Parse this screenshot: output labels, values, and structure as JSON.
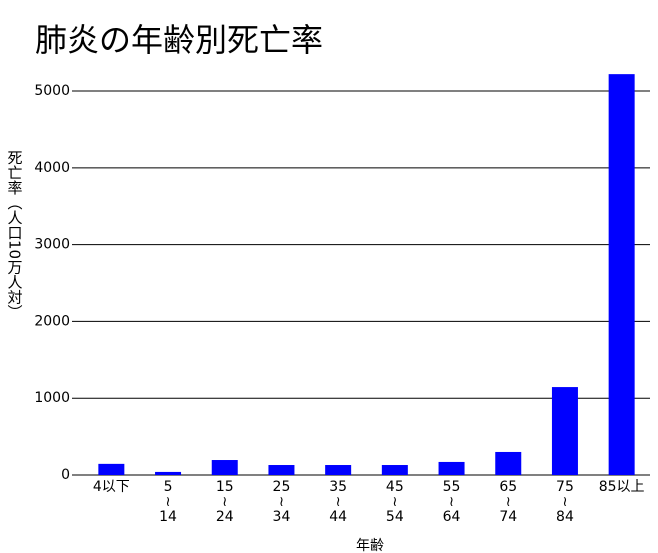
{
  "chart_data": {
    "type": "bar",
    "title": "肺炎の年齢別死亡率",
    "y_label": "死亡率（人口10万人対）",
    "x_label": "年齢",
    "categories": [
      [
        "4以下"
      ],
      [
        "5",
        "≀",
        "14"
      ],
      [
        "15",
        "≀",
        "24"
      ],
      [
        "25",
        "≀",
        "34"
      ],
      [
        "35",
        "≀",
        "44"
      ],
      [
        "45",
        "≀",
        "54"
      ],
      [
        "55",
        "≀",
        "64"
      ],
      [
        "65",
        "≀",
        "74"
      ],
      [
        "75",
        "≀",
        "84"
      ],
      [
        "85以上"
      ]
    ],
    "values": [
      145,
      40,
      195,
      130,
      130,
      130,
      170,
      300,
      1145,
      5220
    ],
    "color": "#0000ff",
    "ylim": [
      0,
      5300
    ],
    "yticks": [
      0,
      1000,
      2000,
      3000,
      4000,
      5000
    ],
    "grid": true
  }
}
